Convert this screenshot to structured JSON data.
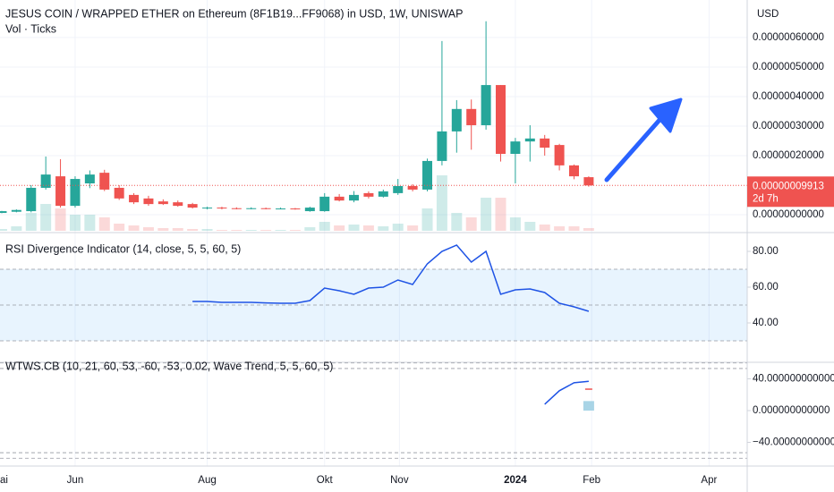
{
  "chart_data": [
    {
      "type": "candlestick",
      "title": "JESUS COIN / WRAPPED ETHER on Ethereum (8F1B19...FF9068) in USD, 1W, UNISWAP",
      "subtitle": "Vol · Ticks",
      "currency": "USD",
      "up_color": "#26a69a",
      "down_color": "#ef5350",
      "open": [
        6e-09,
        1e-08,
        1.2e-08,
        9.1e-08,
        1.3e-07,
        3e-08,
        1.06e-07,
        1.42e-07,
        9.1e-08,
        6.7e-08,
        5.5e-08,
        4.5e-08,
        4.2e-08,
        3.6e-08,
        2.1e-08,
        2.4e-08,
        2.2e-08,
        2e-08,
        2.2e-08,
        2e-08,
        2.1e-08,
        1.2e-08,
        1.2e-08,
        6.1e-08,
        4.8e-08,
        7.3e-08,
        6.1e-08,
        7.3e-08,
        9.7e-08,
        8.5e-08,
        1.82e-07,
        2.82e-07,
        3.58e-07,
        3.03e-07,
        4.39e-07,
        2.06e-07,
        2.48e-07,
        2.58e-07,
        2.36e-07,
        1.67e-07,
        1.27e-07
      ],
      "high": [
        1.3e-08,
        1.8e-08,
        1e-07,
        1.97e-07,
        1.88e-07,
        1.3e-07,
        1.5e-07,
        1.52e-07,
        1e-07,
        7.3e-08,
        6.4e-08,
        5.2e-08,
        4.8e-08,
        4e-08,
        2.7e-08,
        2.7e-08,
        2.5e-08,
        2.5e-08,
        2.4e-08,
        2.4e-08,
        2.3e-08,
        2.7e-08,
        7.3e-08,
        7e-08,
        8e-08,
        7.9e-08,
        8.5e-08,
        1.21e-07,
        1.03e-07,
        1.9e-07,
        5.88e-07,
        3.88e-07,
        3.9e-07,
        6.55e-07,
        4.39e-07,
        2.6e-07,
        3.03e-07,
        2.7e-07,
        2.4e-07,
        1.7e-07,
        1.3e-07
      ],
      "low": [
        5e-09,
        8e-09,
        8e-09,
        8.5e-08,
        2.4e-08,
        2.4e-08,
        9e-08,
        8e-08,
        5e-08,
        3.6e-08,
        3e-08,
        3.3e-08,
        2.7e-08,
        2.1e-08,
        1.8e-08,
        1.8e-08,
        1.8e-08,
        1.8e-08,
        1.8e-08,
        1.8e-08,
        1.7e-08,
        1e-08,
        1e-08,
        4.5e-08,
        4.2e-08,
        5.5e-08,
        5.8e-08,
        6.7e-08,
        7.9e-08,
        7.9e-08,
        1.67e-07,
        2.1e-07,
        2.2e-07,
        2.88e-07,
        1.8e-07,
        1.06e-07,
        1.8e-07,
        2e-07,
        1.5e-07,
        1.2e-07,
        9.5e-08
      ],
      "close": [
        1.2e-08,
        1.6e-08,
        9.1e-08,
        1.36e-07,
        3e-08,
        1.21e-07,
        1.36e-07,
        8.5e-08,
        5.5e-08,
        4.2e-08,
        3.6e-08,
        3.6e-08,
        3e-08,
        2.4e-08,
        2.4e-08,
        2.1e-08,
        2e-08,
        2.2e-08,
        2e-08,
        2.1e-08,
        1.9e-08,
        2.4e-08,
        6.1e-08,
        4.8e-08,
        6.7e-08,
        6.1e-08,
        7.9e-08,
        9.7e-08,
        8.5e-08,
        1.82e-07,
        2.82e-07,
        3.58e-07,
        3.03e-07,
        4.39e-07,
        2.06e-07,
        2.48e-07,
        2.58e-07,
        2.27e-07,
        1.67e-07,
        1.3e-07,
        9.913e-08
      ],
      "volume": [
        2,
        5,
        20,
        30,
        25,
        18,
        18,
        15,
        8,
        6,
        4,
        3,
        3,
        2,
        2,
        1,
        1,
        1,
        1,
        1,
        1,
        4,
        10,
        6,
        7,
        6,
        5,
        8,
        6,
        25,
        62,
        20,
        15,
        37,
        37,
        15,
        10,
        7,
        5,
        5,
        3
      ],
      "last_price": {
        "value": 9.913e-08,
        "label": "0.00000009913"
      },
      "countdown": "2d 7h",
      "ylim": [
        -5.45e-08,
        7.27e-07
      ],
      "yticks": [
        {
          "value": 0,
          "label": "0.00000000000"
        },
        {
          "value": 2e-07,
          "label": "0.00000020000"
        },
        {
          "value": 3e-07,
          "label": "0.00000030000"
        },
        {
          "value": 4e-07,
          "label": "0.00000040000"
        },
        {
          "value": 5e-07,
          "label": "0.00000050000"
        },
        {
          "value": 6e-07,
          "label": "0.00000060000"
        }
      ],
      "xlim": [
        -0.12,
        50.8
      ],
      "xticks": [
        {
          "value": -0.2,
          "label": "ai"
        },
        {
          "value": 5,
          "label": "Jun"
        },
        {
          "value": 14,
          "label": "Aug"
        },
        {
          "value": 22,
          "label": "Okt"
        },
        {
          "value": 27.1,
          "label": "Nov"
        },
        {
          "value": 35,
          "label": "2024"
        },
        {
          "value": 40.2,
          "label": "Feb"
        },
        {
          "value": 48.2,
          "label": "Apr"
        }
      ]
    },
    {
      "type": "line",
      "title": "RSI Divergence Indicator (14, close, 5, 5, 60, 5)",
      "color": "#1e53e5",
      "values": [
        null,
        null,
        null,
        null,
        null,
        null,
        null,
        null,
        null,
        null,
        null,
        null,
        null,
        52,
        52,
        51.5,
        51.5,
        51.5,
        51.2,
        51,
        51,
        52.5,
        59.5,
        58,
        56,
        59.5,
        60,
        64,
        61.5,
        73,
        80,
        83.5,
        74,
        80,
        56,
        58.5,
        59,
        57,
        51,
        49,
        46.5
      ],
      "band": [
        30,
        70
      ],
      "levels": [
        70,
        50,
        30
      ],
      "ylim": [
        18.5,
        89.5
      ],
      "yticks": [
        {
          "value": 40,
          "label": "40.00"
        },
        {
          "value": 60,
          "label": "60.00"
        },
        {
          "value": 80,
          "label": "80.00"
        }
      ]
    },
    {
      "type": "line",
      "title": "WTWS.CB (10, 21, 60, 53, -60, -53, 0.02, Wave Trend, 5, 5, 60, 5)",
      "color": "#1e53e5",
      "values": [
        null,
        null,
        null,
        null,
        null,
        null,
        null,
        null,
        null,
        null,
        null,
        null,
        null,
        null,
        null,
        null,
        null,
        null,
        null,
        null,
        null,
        null,
        null,
        null,
        null,
        null,
        null,
        null,
        null,
        null,
        null,
        null,
        null,
        null,
        null,
        null,
        null,
        8,
        25,
        35,
        37
      ],
      "signal": [
        null,
        null,
        null,
        null,
        null,
        null,
        null,
        null,
        null,
        null,
        null,
        null,
        null,
        null,
        null,
        null,
        null,
        null,
        null,
        null,
        null,
        null,
        null,
        null,
        null,
        null,
        null,
        null,
        null,
        null,
        null,
        null,
        null,
        null,
        null,
        null,
        null,
        null,
        null,
        null,
        27
      ],
      "signal_color": "#ef5350",
      "histogram": [
        null,
        null,
        null,
        null,
        null,
        null,
        null,
        null,
        null,
        null,
        null,
        null,
        null,
        null,
        null,
        null,
        null,
        null,
        null,
        null,
        null,
        null,
        null,
        null,
        null,
        null,
        null,
        null,
        null,
        null,
        null,
        null,
        null,
        null,
        null,
        null,
        null,
        null,
        null,
        null,
        12
      ],
      "histogram_color": "#a8d4e6",
      "levels": [
        60,
        53,
        -53,
        -60
      ],
      "ylim": [
        -68.7,
        59.7
      ],
      "yticks": [
        {
          "value": 40,
          "label": "40.000000000000"
        },
        {
          "value": 0,
          "label": "0.000000000000"
        },
        {
          "value": -40,
          "label": "−40.000000000000"
        }
      ]
    }
  ]
}
